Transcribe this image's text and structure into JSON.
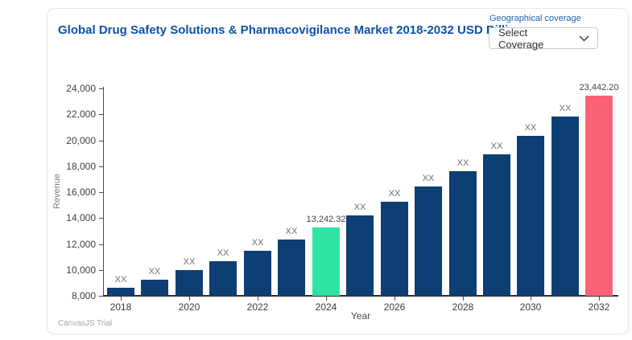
{
  "header": {
    "title": "Global Drug Safety Solutions & Pharmacovigilance Market 2018-2032 USD Billion"
  },
  "coverage_control": {
    "label": "Geographical coverage",
    "selected": "Select Coverage",
    "icon": "chevron-down-icon"
  },
  "watermark": "CanvasJS Trial",
  "chart_data": {
    "type": "bar",
    "title": "Global Drug Safety Solutions & Pharmacovigilance Market 2018-2032 USD Billion",
    "xlabel": "Year",
    "ylabel": "Revenue",
    "ylim": [
      8000,
      24000
    ],
    "ytick_step": 2000,
    "ytick_values": [
      8000,
      10000,
      12000,
      14000,
      16000,
      18000,
      20000,
      22000,
      24000
    ],
    "ytick_labels": [
      "8,000",
      "10,000",
      "12,000",
      "14,000",
      "16,000",
      "18,000",
      "20,000",
      "22,000",
      "24,000"
    ],
    "categories": [
      "2018",
      "2019",
      "2020",
      "2021",
      "2022",
      "2023",
      "2024",
      "2025",
      "2026",
      "2027",
      "2028",
      "2029",
      "2030",
      "2031",
      "2032"
    ],
    "values": [
      8630,
      9268,
      9954,
      10690,
      11481,
      12330,
      13242.32,
      14222,
      15274,
      16404,
      17617,
      18920,
      20320,
      21823,
      23442.2
    ],
    "bar_labels": [
      "XX",
      "XX",
      "XX",
      "XX",
      "XX",
      "XX",
      "13,242.32",
      "XX",
      "XX",
      "XX",
      "XX",
      "XX",
      "XX",
      "XX",
      "23,442.20"
    ],
    "bar_colors": [
      "#0d3e74",
      "#0d3e74",
      "#0d3e74",
      "#0d3e74",
      "#0d3e74",
      "#0d3e74",
      "#2fe3a3",
      "#0d3e74",
      "#0d3e74",
      "#0d3e74",
      "#0d3e74",
      "#0d3e74",
      "#0d3e74",
      "#0d3e74",
      "#fc6277"
    ],
    "xtick_label_years": [
      "2018",
      "2020",
      "2022",
      "2024",
      "2026",
      "2028",
      "2030",
      "2032"
    ],
    "colors": {
      "bar_default": "#0d3e74",
      "bar_highlight_2024": "#2fe3a3",
      "bar_highlight_2032": "#fc6277",
      "title_blue": "#0d52a5",
      "coverage_label_blue": "#1e62ae"
    },
    "grid": false,
    "legend": "none"
  }
}
